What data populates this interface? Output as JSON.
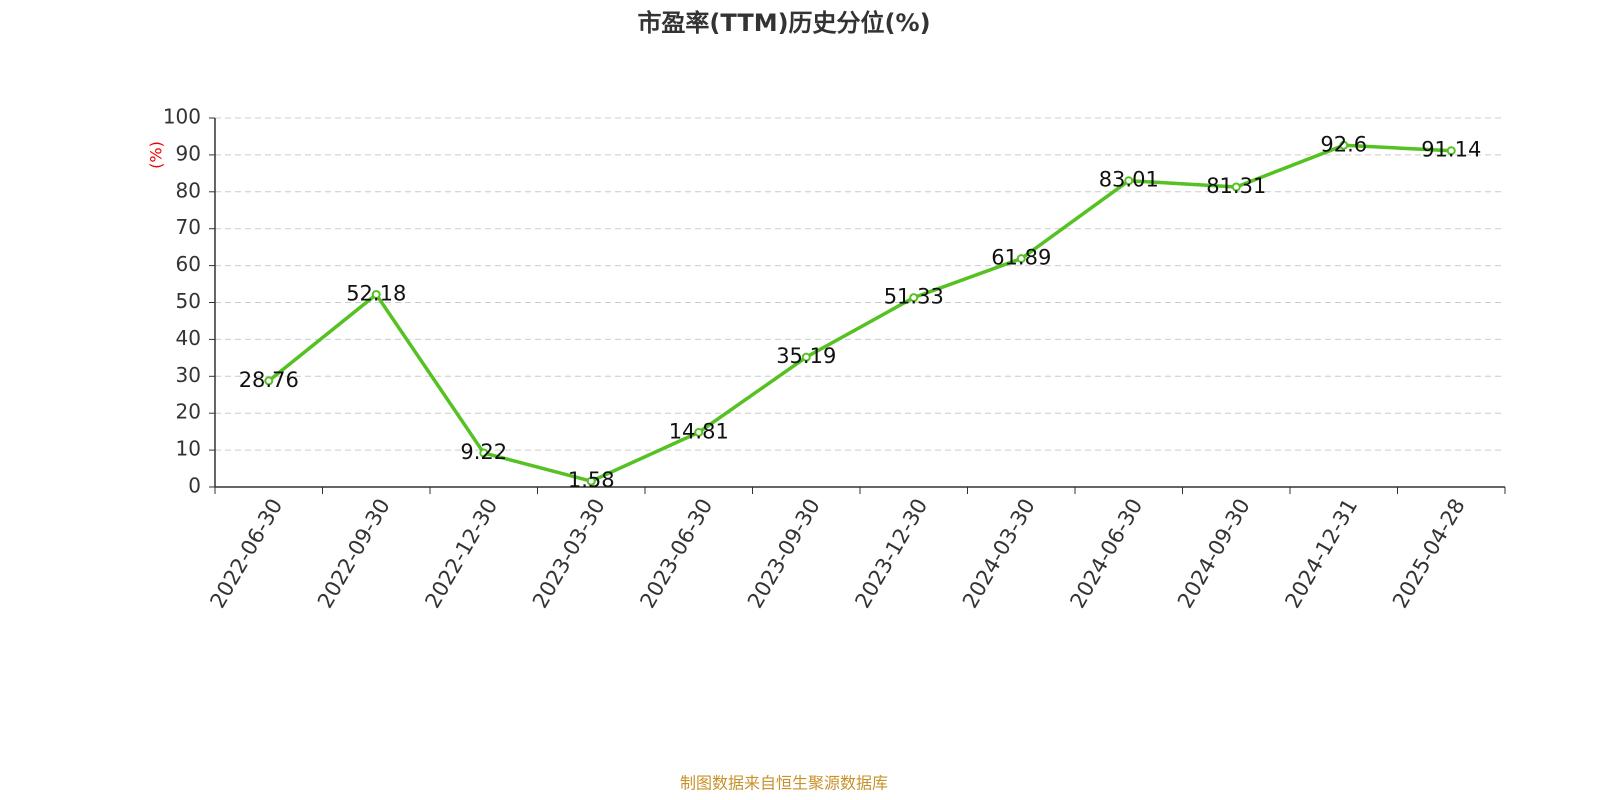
{
  "chart_data": {
    "type": "line",
    "title": "市盈率(TTM)历史分位(%)",
    "y_label": "(%)",
    "categories": [
      "2022-06-30",
      "2022-09-30",
      "2022-12-30",
      "2023-03-30",
      "2023-06-30",
      "2023-09-30",
      "2023-12-30",
      "2024-03-30",
      "2024-06-30",
      "2024-09-30",
      "2024-12-31",
      "2025-04-28"
    ],
    "values": [
      28.76,
      52.18,
      9.22,
      1.58,
      14.81,
      35.19,
      51.33,
      61.89,
      83.01,
      81.31,
      92.6,
      91.14
    ],
    "color": "#55c122",
    "ylim": [
      0,
      100
    ],
    "yticks": [
      0,
      10,
      20,
      30,
      40,
      50,
      60,
      70,
      80,
      90,
      100
    ],
    "grid": true,
    "source": "制图数据来自恒生聚源数据库"
  }
}
